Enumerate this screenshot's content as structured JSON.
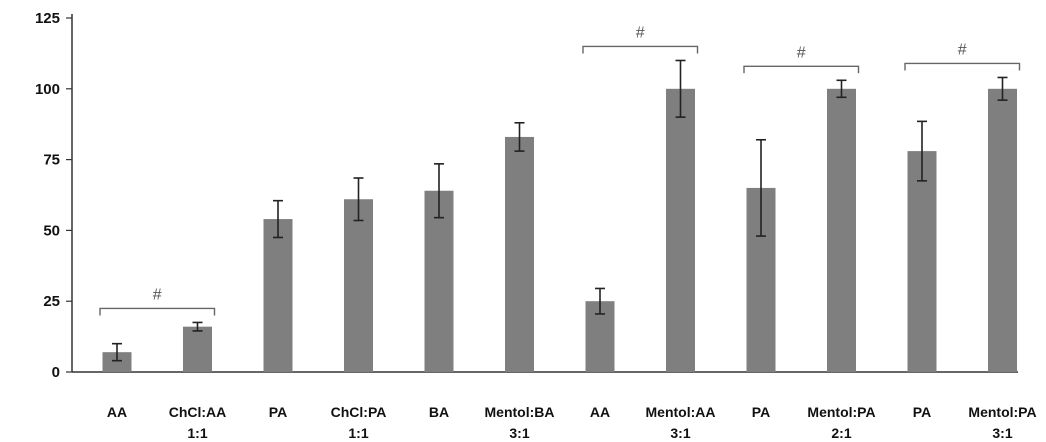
{
  "chart_data": {
    "type": "bar",
    "title": "",
    "xlabel": "",
    "ylabel": "",
    "ylim": [
      0,
      125
    ],
    "yticks": [
      0,
      25,
      50,
      75,
      100,
      125
    ],
    "grid": false,
    "legend": "none",
    "bar_color": "#7f7f7f",
    "categories": [
      {
        "line1": "AA",
        "line2": ""
      },
      {
        "line1": "ChCl:AA",
        "line2": "1:1"
      },
      {
        "line1": "PA",
        "line2": ""
      },
      {
        "line1": "ChCl:PA",
        "line2": "1:1"
      },
      {
        "line1": "BA",
        "line2": ""
      },
      {
        "line1": "Mentol:BA",
        "line2": "3:1"
      },
      {
        "line1": "AA",
        "line2": ""
      },
      {
        "line1": "Mentol:AA",
        "line2": "3:1"
      },
      {
        "line1": "PA",
        "line2": ""
      },
      {
        "line1": "Mentol:PA",
        "line2": "2:1"
      },
      {
        "line1": "PA",
        "line2": ""
      },
      {
        "line1": "Mentol:PA",
        "line2": "3:1"
      }
    ],
    "values": [
      7,
      16,
      54,
      61,
      64,
      83,
      25,
      100,
      65,
      100,
      78,
      100
    ],
    "errors": [
      3,
      1.5,
      6.5,
      7.5,
      9.5,
      5,
      4.5,
      10,
      17,
      3,
      10.5,
      4
    ],
    "significance": [
      {
        "from": 0,
        "to": 1,
        "label": "#"
      },
      {
        "from": 6,
        "to": 7,
        "label": "#"
      },
      {
        "from": 8,
        "to": 9,
        "label": "#"
      },
      {
        "from": 10,
        "to": 11,
        "label": "#"
      }
    ]
  }
}
